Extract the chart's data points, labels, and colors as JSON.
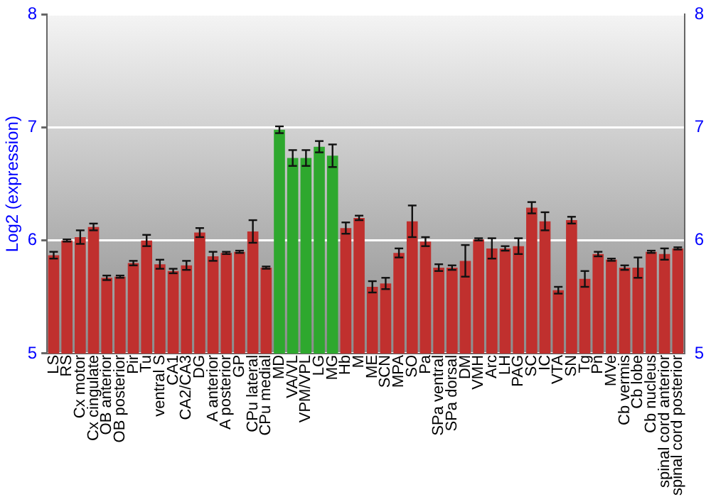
{
  "chart_data": {
    "type": "bar",
    "ylabel": "Log2 (expression)",
    "categories": [
      "LS",
      "RS",
      "Cx motor",
      "Cx cingulate",
      "OB anterior",
      "OB posterior",
      "Pir",
      "Tu",
      "ventral S",
      "CA1",
      "CA2/CA3",
      "DG",
      "A anterior",
      "A posterior",
      "GP",
      "CPu lateral",
      "CPu medial",
      "MD",
      "VA/VL",
      "VPM/VPL",
      "LG",
      "MG",
      "Hb",
      "M",
      "ME",
      "SCN",
      "MPA",
      "SO",
      "Pa",
      "SPa ventral",
      "SPa dorsal",
      "DM",
      "VMH",
      "Arc",
      "LH",
      "PAG",
      "SC",
      "IC",
      "VTA",
      "SN",
      "Tg",
      "Pn",
      "MVe",
      "Cb vermis",
      "Cb lobe",
      "Cb nucleus",
      "spinal cord anterior",
      "spinal cord posterior"
    ],
    "values": [
      5.87,
      6.0,
      6.03,
      6.12,
      5.67,
      5.68,
      5.8,
      6.0,
      5.79,
      5.73,
      5.78,
      6.07,
      5.86,
      5.89,
      5.9,
      6.08,
      5.76,
      6.98,
      6.73,
      6.73,
      6.83,
      6.75,
      6.11,
      6.2,
      5.59,
      5.62,
      5.89,
      6.17,
      5.99,
      5.76,
      5.76,
      5.82,
      6.01,
      5.93,
      5.93,
      5.95,
      6.29,
      6.17,
      5.56,
      6.18,
      5.66,
      5.88,
      5.83,
      5.76,
      5.76,
      5.9,
      5.88,
      5.93
    ],
    "errors": [
      0.03,
      0.01,
      0.06,
      0.03,
      0.02,
      0.01,
      0.02,
      0.05,
      0.04,
      0.02,
      0.04,
      0.04,
      0.04,
      0.01,
      0.01,
      0.1,
      0.01,
      0.03,
      0.07,
      0.07,
      0.05,
      0.1,
      0.05,
      0.02,
      0.05,
      0.05,
      0.04,
      0.14,
      0.04,
      0.03,
      0.02,
      0.14,
      0.01,
      0.09,
      0.02,
      0.07,
      0.05,
      0.08,
      0.03,
      0.03,
      0.07,
      0.02,
      0.01,
      0.02,
      0.09,
      0.01,
      0.05,
      0.01
    ],
    "colors": [
      "#c0302e",
      "#c0302e",
      "#c0302e",
      "#c0302e",
      "#c0302e",
      "#c0302e",
      "#c0302e",
      "#c0302e",
      "#c0302e",
      "#c0302e",
      "#c0302e",
      "#c0302e",
      "#c0302e",
      "#c0302e",
      "#c0302e",
      "#c0302e",
      "#c0302e",
      "#2ea82e",
      "#2ea82e",
      "#2ea82e",
      "#2ea82e",
      "#2ea82e",
      "#c0302e",
      "#c0302e",
      "#c0302e",
      "#c0302e",
      "#c0302e",
      "#c0302e",
      "#c0302e",
      "#c0302e",
      "#c0302e",
      "#c0302e",
      "#c0302e",
      "#c0302e",
      "#c0302e",
      "#c0302e",
      "#c0302e",
      "#c0302e",
      "#c0302e",
      "#c0302e",
      "#c0302e",
      "#c0302e",
      "#c0302e",
      "#c0302e",
      "#c0302e",
      "#c0302e",
      "#c0302e",
      "#c0302e"
    ],
    "ylim": [
      5,
      8
    ],
    "yticks": [
      5,
      6,
      7,
      8
    ],
    "y2lim": [
      5,
      8
    ],
    "y2ticks": [
      5,
      6,
      7,
      8
    ],
    "grid": "y",
    "legend": false
  }
}
